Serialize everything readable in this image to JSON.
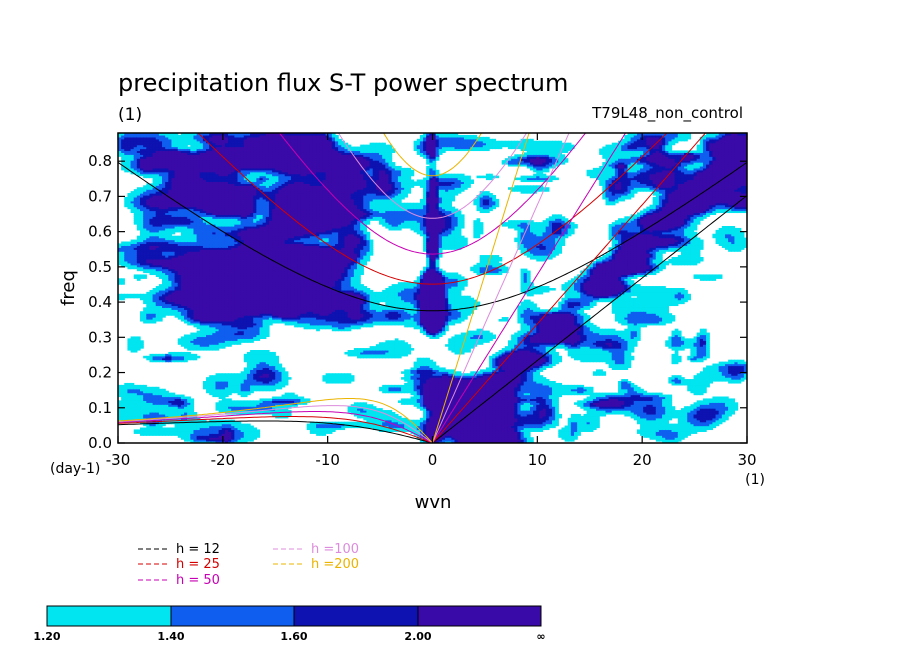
{
  "chart_data": {
    "type": "heatmap",
    "title": "precipitation flux S-T power spectrum",
    "subtitle_left": "(1)",
    "subtitle_right": "T79L48_non_control",
    "xlabel": "wvn",
    "ylabel": "freq",
    "x_unit": "(1)",
    "y_unit": "(day-1)",
    "xlim": [
      -30,
      30
    ],
    "ylim": [
      0,
      0.88
    ],
    "x_ticks": [
      -30,
      -20,
      -10,
      0,
      10,
      20,
      30
    ],
    "y_ticks": [
      0.0,
      0.1,
      0.2,
      0.3,
      0.4,
      0.5,
      0.6,
      0.7,
      0.8
    ],
    "x_tick_labels": [
      "-30",
      "-20",
      "-10",
      "0",
      "10",
      "20",
      "30"
    ],
    "y_tick_labels": [
      "0.0",
      "0.1",
      "0.2",
      "0.3",
      "0.4",
      "0.5",
      "0.6",
      "0.7",
      "0.8"
    ],
    "color_levels": [
      {
        "label": "1.20",
        "color": "#00e5f0"
      },
      {
        "label": "1.40",
        "color": "#0f5ef0"
      },
      {
        "label": "1.60",
        "color": "#0d12b0"
      },
      {
        "label": "2.00",
        "color": "#3a0aa8"
      },
      {
        "label": "∞",
        "color": "#ffffff"
      }
    ],
    "dispersion_curves": [
      {
        "name": "h = 12",
        "color": "#000000"
      },
      {
        "name": "h = 25",
        "color": "#d40000"
      },
      {
        "name": "h = 50",
        "color": "#c800b4"
      },
      {
        "name": "h =100",
        "color": "#dc8cdc"
      },
      {
        "name": "h =200",
        "color": "#ebb400"
      }
    ]
  }
}
